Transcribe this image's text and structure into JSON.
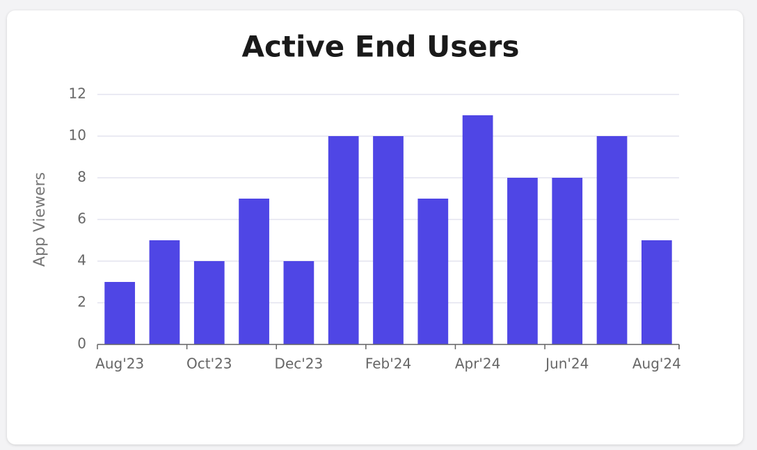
{
  "chart_data": {
    "type": "bar",
    "title": "Active End Users",
    "y_label": "App Viewers",
    "categories": [
      "Aug'23",
      null,
      "Oct'23",
      null,
      "Dec'23",
      null,
      "Feb'24",
      null,
      "Apr'24",
      null,
      "Jun'24",
      null,
      "Aug'24"
    ],
    "values": [
      3,
      5,
      4,
      7,
      4,
      10,
      10,
      7,
      11,
      8,
      8,
      10,
      5
    ],
    "color": "#4f46e5",
    "ylim": [
      0,
      12
    ],
    "yticks": [
      0,
      2,
      4,
      6,
      8,
      10,
      12
    ],
    "grid": true
  }
}
